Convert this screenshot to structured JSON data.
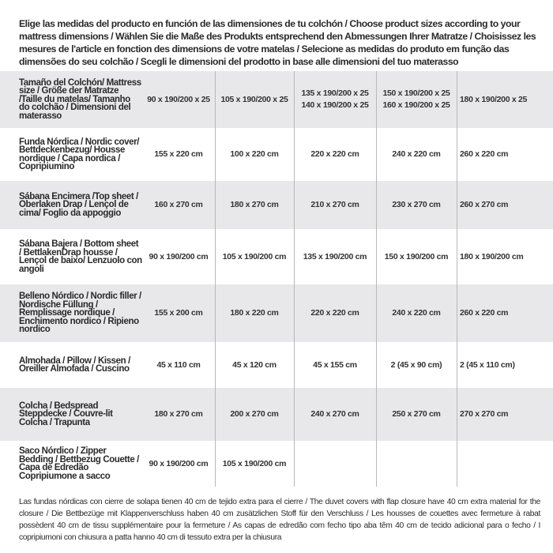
{
  "intro": "Elige las medidas del producto en función de las dimensiones de tu colchón / Choose product sizes according to your mattress dimensions / Wählen Sie die Maße des Produkts entsprechend den Abmessungen Ihrer Matratze / Choisissez les mesures de l'article en fonction des dimensions de votre matelas / Selecione as medidas do produto em função das dimensões do seu colchão / Scegli le dimensioni del prodotto in base alle dimensioni del tuo materasso",
  "table": {
    "header": {
      "label": "Tamaño del Colchón/ Mattress size / Größe der Matratze /Taille du matelas/ Tamanho do colchão / Dimensioni del materasso",
      "cols": [
        "90 x 190/200 x 25",
        "105 x 190/200 x 25",
        "135 x 190/200 x 25\n140 x 190/200 x 25",
        "150 x 190/200 x 25\n160 x 190/200 x 25",
        "180 x 190/200 x 25"
      ]
    },
    "rows": [
      {
        "label": "Funda Nórdica /  Nordic cover/ Bettdeckenbezug/ Housse nordique  / Capa nordica / Copripiumino",
        "values": [
          "155 x 220 cm",
          "100 x 220 cm",
          "220 x 220 cm",
          "240 x 220 cm",
          "260 x 220 cm"
        ]
      },
      {
        "label": "Sábana Encimera /Top sheet / Oberlaken Drap / Lençol de cima/ Foglio da appoggio",
        "values": [
          "160 x 270 cm",
          "180 x 270 cm",
          "210 x 270 cm",
          "230 x 270 cm",
          "260 x 270 cm"
        ]
      },
      {
        "label": "Sábana Bajera / Bottom sheet / BettlakenDrap housse / Lençol de baixo/ Lenzuolo con angoli",
        "values": [
          "90 x 190/200 cm",
          "105 x 190/200 cm",
          "135 x 190/200 cm",
          "150 x 190/200 cm",
          "180 x 190/200 cm"
        ]
      },
      {
        "label": "Belleno Nórdico / Nordic filler / Nordische Füllung / Remplissage nordique / Enchimento nordico / Ripieno nordico",
        "values": [
          "155 x 200 cm",
          "180 x 220 cm",
          "220 x 220 cm",
          "240 x 220 cm",
          "260 x 220 cm"
        ]
      },
      {
        "label": "Almohada  / Pillow / Kissen / Oreiller Almofada / Cuscino",
        "values": [
          "45 x 110 cm",
          "45 x 120 cm",
          "45 x 155 cm",
          "2 (45 x 90 cm)",
          "2 (45 x 110 cm)"
        ]
      },
      {
        "label": "Colcha / Bedspread Steppdecke / Couvre-lit Colcha / Trapunta",
        "values": [
          "180 x 270 cm",
          "200 x 270 cm",
          "240 x 270 cm",
          "250 x 270 cm",
          "270 x 270 cm"
        ]
      },
      {
        "label": "Saco Nórdico / Zipper Bedding / Bettbezug Couette  / Capa de Edredão Copripiumone a sacco",
        "values": [
          "90 x 190/200 cm",
          "105 x 190/200 cm",
          "",
          "",
          ""
        ]
      }
    ]
  },
  "footer": "Las fundas nórdicas con cierre de solapa tienen 40 cm de tejido extra para el cierre  / The duvet covers with flap closure have 40 cm extra material for the closure / Die Bettbezüge mit Klappenverschluss haben 40 cm zusätzlichen Stoff für den Verschluss / Les housses de couettes avec fermeture à rabat possèdent 40 cm de tissu supplémentaire pour la fermeture / As capas de edredão com fecho tipo aba têm 40 cm de tecido adicional para o fecho / I copripiumoni con chiusura a patta hanno 40 cm di tessuto extra per la chiusura",
  "colors": {
    "row_gray": "#e8e8ea",
    "row_white": "#ffffff",
    "divider": "#b8b8b8",
    "text": "#2a2a2a"
  }
}
